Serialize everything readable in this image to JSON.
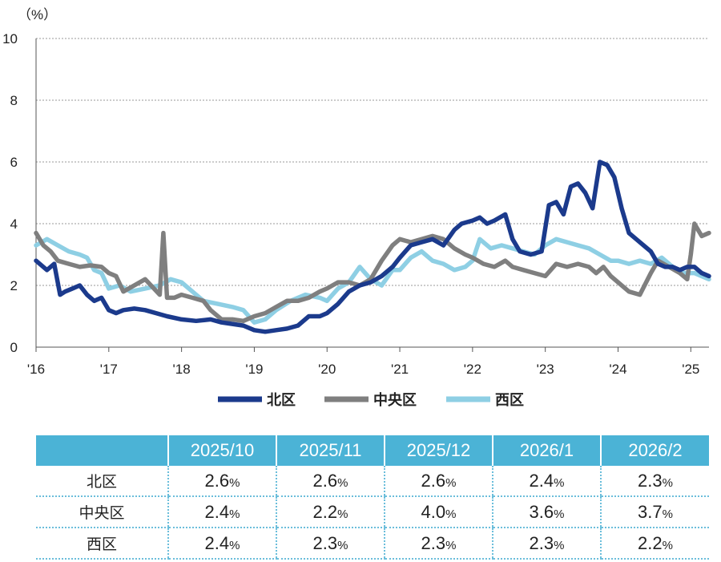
{
  "chart_data": {
    "type": "line",
    "unit_label": "（%）",
    "ylim": [
      0,
      10
    ],
    "yticks": [
      "0",
      "2",
      "4",
      "6",
      "8",
      "10"
    ],
    "xlim": [
      2016,
      2025.25
    ],
    "xtick_labels": [
      "'16",
      "'17",
      "'18",
      "'19",
      "'20",
      "'21",
      "'22",
      "'23",
      "'24",
      "'25"
    ],
    "grid": "horizontal dotted",
    "legend_position": "bottom",
    "series": [
      {
        "name": "北区",
        "color": "#1b3a8c",
        "x": [
          2016.0,
          2016.15,
          2016.25,
          2016.33,
          2016.4,
          2016.5,
          2016.6,
          2016.7,
          2016.8,
          2016.9,
          2017.0,
          2017.1,
          2017.2,
          2017.35,
          2017.5,
          2017.65,
          2017.8,
          2018.0,
          2018.2,
          2018.4,
          2018.55,
          2018.7,
          2018.85,
          2019.0,
          2019.15,
          2019.3,
          2019.45,
          2019.6,
          2019.75,
          2019.9,
          2020.0,
          2020.15,
          2020.3,
          2020.45,
          2020.6,
          2020.75,
          2020.9,
          2021.0,
          2021.15,
          2021.3,
          2021.45,
          2021.6,
          2021.75,
          2021.85,
          2022.0,
          2022.1,
          2022.2,
          2022.3,
          2022.45,
          2022.55,
          2022.65,
          2022.8,
          2022.95,
          2023.05,
          2023.15,
          2023.25,
          2023.35,
          2023.45,
          2023.55,
          2023.65,
          2023.75,
          2023.85,
          2023.95,
          2024.05,
          2024.15,
          2024.25,
          2024.35,
          2024.45,
          2024.55,
          2024.65,
          2024.75,
          2024.85,
          2024.95,
          2025.05,
          2025.15,
          2025.25
        ],
        "y": [
          2.8,
          2.5,
          2.7,
          1.7,
          1.8,
          1.9,
          2.0,
          1.7,
          1.5,
          1.6,
          1.2,
          1.1,
          1.2,
          1.25,
          1.2,
          1.1,
          1.0,
          0.9,
          0.85,
          0.9,
          0.8,
          0.75,
          0.7,
          0.55,
          0.5,
          0.55,
          0.6,
          0.7,
          1.0,
          1.0,
          1.1,
          1.4,
          1.8,
          2.0,
          2.1,
          2.3,
          2.6,
          2.9,
          3.3,
          3.4,
          3.5,
          3.3,
          3.8,
          4.0,
          4.1,
          4.2,
          4.0,
          4.1,
          4.3,
          3.5,
          3.1,
          3.0,
          3.1,
          4.6,
          4.7,
          4.3,
          5.2,
          5.3,
          5.0,
          4.5,
          6.0,
          5.9,
          5.5,
          4.5,
          3.7,
          3.5,
          3.3,
          3.1,
          2.7,
          2.6,
          2.6,
          2.5,
          2.6,
          2.6,
          2.4,
          2.3
        ]
      },
      {
        "name": "中央区",
        "color": "#7f7f7f",
        "x": [
          2016.0,
          2016.1,
          2016.2,
          2016.3,
          2016.45,
          2016.6,
          2016.75,
          2016.9,
          2017.0,
          2017.1,
          2017.2,
          2017.35,
          2017.5,
          2017.7,
          2017.75,
          2017.8,
          2017.9,
          2018.0,
          2018.15,
          2018.3,
          2018.4,
          2018.55,
          2018.7,
          2018.85,
          2019.0,
          2019.15,
          2019.3,
          2019.45,
          2019.6,
          2019.75,
          2019.9,
          2020.0,
          2020.15,
          2020.3,
          2020.45,
          2020.6,
          2020.75,
          2020.9,
          2021.0,
          2021.15,
          2021.3,
          2021.45,
          2021.6,
          2021.75,
          2021.9,
          2022.0,
          2022.15,
          2022.3,
          2022.45,
          2022.55,
          2022.7,
          2022.85,
          2023.0,
          2023.15,
          2023.3,
          2023.45,
          2023.6,
          2023.7,
          2023.8,
          2023.9,
          2024.0,
          2024.15,
          2024.3,
          2024.45,
          2024.55,
          2024.7,
          2024.85,
          2024.95,
          2025.0,
          2025.05,
          2025.15,
          2025.25
        ],
        "y": [
          3.7,
          3.3,
          3.1,
          2.8,
          2.7,
          2.6,
          2.65,
          2.6,
          2.4,
          2.3,
          1.8,
          2.0,
          2.2,
          1.7,
          3.7,
          1.6,
          1.6,
          1.7,
          1.6,
          1.5,
          1.2,
          0.9,
          0.9,
          0.85,
          1.0,
          1.1,
          1.3,
          1.5,
          1.5,
          1.6,
          1.8,
          1.9,
          2.1,
          2.1,
          2.0,
          2.2,
          2.8,
          3.3,
          3.5,
          3.4,
          3.5,
          3.6,
          3.5,
          3.2,
          3.0,
          2.9,
          2.7,
          2.6,
          2.8,
          2.6,
          2.5,
          2.4,
          2.3,
          2.7,
          2.6,
          2.7,
          2.6,
          2.4,
          2.6,
          2.3,
          2.1,
          1.8,
          1.7,
          2.4,
          2.8,
          2.6,
          2.4,
          2.2,
          3.0,
          4.0,
          3.6,
          3.7
        ]
      },
      {
        "name": "西区",
        "color": "#8ecfe4",
        "x": [
          2016.0,
          2016.15,
          2016.3,
          2016.45,
          2016.6,
          2016.7,
          2016.8,
          2016.9,
          2017.0,
          2017.15,
          2017.3,
          2017.5,
          2017.7,
          2017.85,
          2018.0,
          2018.15,
          2018.3,
          2018.5,
          2018.7,
          2018.85,
          2019.0,
          2019.15,
          2019.3,
          2019.5,
          2019.7,
          2019.9,
          2020.0,
          2020.15,
          2020.3,
          2020.45,
          2020.6,
          2020.75,
          2020.9,
          2021.0,
          2021.15,
          2021.3,
          2021.45,
          2021.6,
          2021.75,
          2021.9,
          2022.0,
          2022.1,
          2022.25,
          2022.4,
          2022.55,
          2022.7,
          2022.85,
          2023.0,
          2023.15,
          2023.3,
          2023.45,
          2023.6,
          2023.75,
          2023.9,
          2024.0,
          2024.15,
          2024.3,
          2024.45,
          2024.6,
          2024.75,
          2024.9,
          2025.05,
          2025.15,
          2025.25
        ],
        "y": [
          3.3,
          3.5,
          3.3,
          3.1,
          3.0,
          2.9,
          2.5,
          2.4,
          1.9,
          2.0,
          1.8,
          1.9,
          2.0,
          2.2,
          2.1,
          1.8,
          1.5,
          1.4,
          1.3,
          1.2,
          0.8,
          0.9,
          1.2,
          1.5,
          1.7,
          1.6,
          1.5,
          1.9,
          2.1,
          2.6,
          2.2,
          2.0,
          2.5,
          2.5,
          2.9,
          3.1,
          2.8,
          2.7,
          2.5,
          2.6,
          2.8,
          3.5,
          3.2,
          3.3,
          3.2,
          3.1,
          3.0,
          3.3,
          3.5,
          3.4,
          3.3,
          3.2,
          3.0,
          2.8,
          2.8,
          2.7,
          2.8,
          2.7,
          2.9,
          2.6,
          2.4,
          2.4,
          2.3,
          2.2
        ]
      }
    ]
  },
  "table": {
    "headers": [
      "",
      "2025/10",
      "2025/11",
      "2025/12",
      "2026/1",
      "2026/2"
    ],
    "rows": [
      {
        "label": "北区",
        "values": [
          "2.6",
          "2.6",
          "2.6",
          "2.4",
          "2.3"
        ]
      },
      {
        "label": "中央区",
        "values": [
          "2.4",
          "2.2",
          "4.0",
          "3.6",
          "3.7"
        ]
      },
      {
        "label": "西区",
        "values": [
          "2.4",
          "2.3",
          "2.3",
          "2.3",
          "2.2"
        ]
      }
    ],
    "unit": "%"
  }
}
